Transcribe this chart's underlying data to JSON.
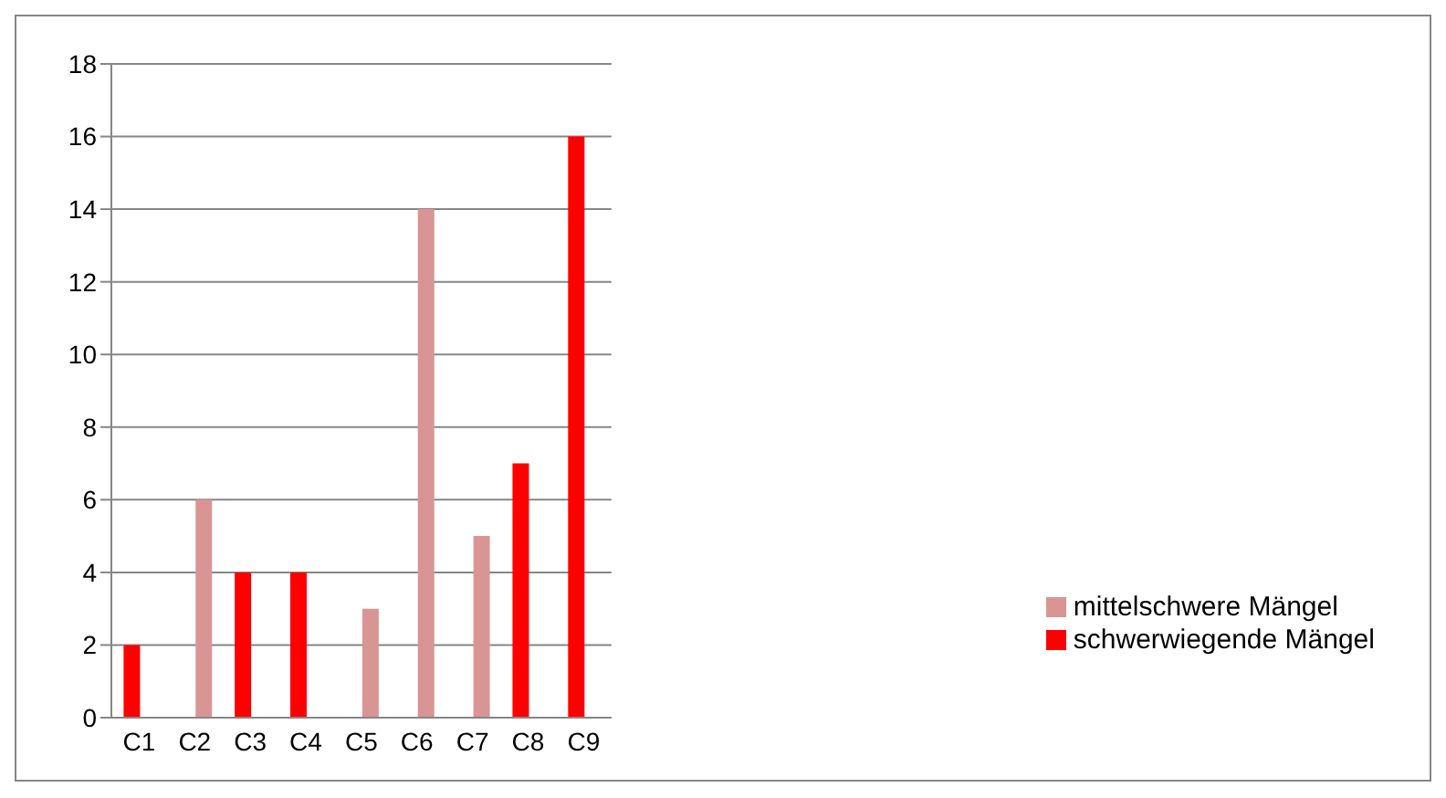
{
  "chart_data": {
    "type": "bar",
    "categories": [
      "C1",
      "C2",
      "C3",
      "C4",
      "C5",
      "C6",
      "C7",
      "C8",
      "C9"
    ],
    "series": [
      {
        "name": "schwerwiegende Mängel",
        "color": "#ff0000",
        "values": [
          2,
          null,
          4,
          4,
          null,
          null,
          null,
          7,
          16
        ]
      },
      {
        "name": "mittelschwere Mängel",
        "color": "#d99594",
        "values": [
          null,
          6,
          null,
          null,
          3,
          14,
          5,
          null,
          null
        ]
      }
    ],
    "ylim": [
      0,
      18
    ],
    "yticks": [
      0,
      2,
      4,
      6,
      8,
      10,
      12,
      14,
      16,
      18
    ],
    "grid": "y",
    "legend": "right"
  }
}
